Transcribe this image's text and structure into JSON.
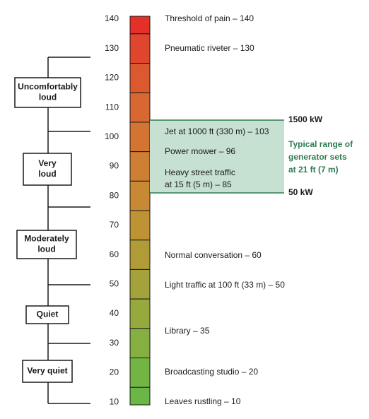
{
  "scale": {
    "ticks": [
      "140",
      "130",
      "120",
      "110",
      "100",
      "90",
      "80",
      "70",
      "60",
      "50",
      "40",
      "30",
      "20",
      "10"
    ]
  },
  "examples": [
    {
      "lines": [
        "Threshold of pain – 140"
      ]
    },
    {
      "lines": [
        "Pneumatic riveter – 130"
      ]
    },
    {
      "lines": [
        "Jet at 1000 ft (330 m) – 103"
      ]
    },
    {
      "lines": [
        "Power mower – 96"
      ]
    },
    {
      "lines": [
        "Heavy street traffic",
        "at 15 ft (5 m) – 85"
      ]
    },
    {
      "lines": [
        "Normal conversation – 60"
      ]
    },
    {
      "lines": [
        "Light traffic at 100 ft (33 m) – 50"
      ]
    },
    {
      "lines": [
        "Library – 35"
      ]
    },
    {
      "lines": [
        "Broadcasting studio – 20"
      ]
    },
    {
      "lines": [
        "Leaves rustling – 10"
      ]
    }
  ],
  "categories": [
    {
      "lines": [
        "Uncomfortably",
        "loud"
      ]
    },
    {
      "lines": [
        "Very",
        "loud"
      ]
    },
    {
      "lines": [
        "Moderately",
        "loud"
      ]
    },
    {
      "lines": [
        "Quiet"
      ]
    },
    {
      "lines": [
        "Very quiet"
      ]
    }
  ],
  "generator": {
    "top_label": "1500 kW",
    "bottom_label": "50 kW",
    "note": [
      "Typical range of",
      "generator sets",
      "at 21 ft (7 m)"
    ]
  }
}
